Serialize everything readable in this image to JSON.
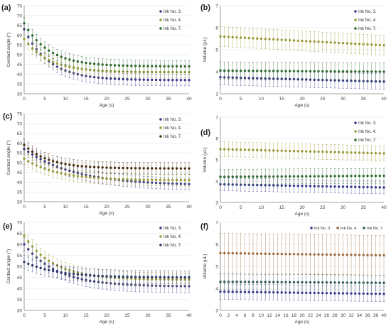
{
  "chart_data": [
    {
      "panel_label": "(a)",
      "type": "scatter",
      "xlabel": "Age (s)",
      "ylabel": "Contact angle (°)",
      "xlim": [
        0,
        40
      ],
      "ylim": [
        30,
        75
      ],
      "xticks": [
        0,
        5,
        10,
        15,
        20,
        25,
        30,
        35,
        40
      ],
      "yticks": [
        30,
        35,
        40,
        45,
        50,
        55,
        60,
        65,
        70,
        75
      ],
      "legend_position": "top-right",
      "series": [
        {
          "name": "Ink No. 3.",
          "color": "#3a3a8c",
          "start": 63,
          "end": 37,
          "tau": 6,
          "err": 3
        },
        {
          "name": "Ink No. 4.",
          "color": "#9b9b3a",
          "start": 58,
          "end": 41,
          "tau": 6,
          "err": 3
        },
        {
          "name": "Ink No. 7.",
          "color": "#2f6b2f",
          "start": 66,
          "end": 44,
          "tau": 6,
          "err": 3
        }
      ]
    },
    {
      "panel_label": "(b)",
      "type": "scatter",
      "xlabel": "Age (s)",
      "ylabel": "Volume (µL)",
      "xlim": [
        0,
        40
      ],
      "ylim": [
        3,
        7
      ],
      "xticks": [
        0,
        5,
        10,
        15,
        20,
        25,
        30,
        35,
        40
      ],
      "yticks": [
        3,
        4,
        5,
        6,
        7
      ],
      "legend_position": "top-right",
      "series": [
        {
          "name": "Ink No. 3.",
          "color": "#3a3a8c",
          "start": 3.75,
          "end": 3.55,
          "tau": 0,
          "err": 0.35
        },
        {
          "name": "Ink No. 4.",
          "color": "#9b9b3a",
          "start": 5.6,
          "end": 5.2,
          "tau": 0,
          "err": 0.45
        },
        {
          "name": "Ink No. 7.",
          "color": "#2f6b2f",
          "start": 4.05,
          "end": 4.0,
          "tau": 0,
          "err": 0.4
        }
      ]
    },
    {
      "panel_label": "(c)",
      "type": "scatter",
      "xlabel": "Age (s)",
      "ylabel": "Contact angle (°)",
      "xlim": [
        0,
        40
      ],
      "ylim": [
        30,
        75
      ],
      "xticks": [
        0,
        5,
        10,
        15,
        20,
        25,
        30,
        35,
        40
      ],
      "yticks": [
        30,
        35,
        40,
        45,
        50,
        55,
        60,
        65,
        70,
        75
      ],
      "legend_position": "top-right",
      "series": [
        {
          "name": "Ink No. 3.",
          "color": "#3a3a8c",
          "start": 57,
          "end": 39,
          "tau": 12,
          "err": 3
        },
        {
          "name": "Ink No. 4.",
          "color": "#9b9b3a",
          "start": 52,
          "end": 41,
          "tau": 8,
          "err": 3
        },
        {
          "name": "Ink No. 7.",
          "color": "#4a2f10",
          "start": 59,
          "end": 47,
          "tau": 6,
          "err": 3
        }
      ]
    },
    {
      "panel_label": "(d)",
      "type": "scatter",
      "xlabel": "Age (s)",
      "ylabel": "Volume (µL)",
      "xlim": [
        0,
        40
      ],
      "ylim": [
        3,
        7
      ],
      "xticks": [
        0,
        5,
        10,
        15,
        20,
        25,
        30,
        35,
        40
      ],
      "yticks": [
        3,
        4,
        5,
        6,
        7
      ],
      "legend_position": "top-right",
      "series": [
        {
          "name": "Ink No. 3.",
          "color": "#3a3a8c",
          "start": 3.85,
          "end": 3.7,
          "tau": 0,
          "err": 0.3
        },
        {
          "name": "Ink No. 4.",
          "color": "#9b9b3a",
          "start": 5.5,
          "end": 5.3,
          "tau": 0,
          "err": 0.35
        },
        {
          "name": "Ink No. 7.",
          "color": "#2f6b2f",
          "start": 4.2,
          "end": 4.25,
          "tau": 0,
          "err": 0.35
        }
      ]
    },
    {
      "panel_label": "(e)",
      "type": "scatter",
      "xlabel": "Age (s)",
      "ylabel": "Contact angle (°)",
      "xlim": [
        0,
        40
      ],
      "ylim": [
        30,
        70
      ],
      "xticks": [
        0,
        5,
        10,
        15,
        20,
        25,
        30,
        35,
        40
      ],
      "yticks": [
        30,
        35,
        40,
        45,
        50,
        55,
        60,
        65,
        70
      ],
      "legend_position": "top-right",
      "series": [
        {
          "name": "Ink No. 3.",
          "color": "#3a3a8c",
          "start": 60,
          "end": 41,
          "tau": 8,
          "err": 3
        },
        {
          "name": "Ink No. 4.",
          "color": "#9b9b3a",
          "start": 64,
          "end": 44,
          "tau": 7,
          "err": 3
        },
        {
          "name": "Ink No. 7.",
          "color": "#2f3b6b",
          "start": 52,
          "end": 45,
          "tau": 8,
          "err": 3
        }
      ]
    },
    {
      "panel_label": "(f)",
      "type": "scatter",
      "xlabel": "Age (s)",
      "ylabel": "Volume (µL)",
      "xlim": [
        0,
        40
      ],
      "ylim": [
        3,
        7
      ],
      "xticks": [
        0,
        2,
        4,
        6,
        8,
        10,
        12,
        14,
        16,
        18,
        20,
        22,
        24,
        26,
        28,
        30,
        32,
        34,
        36,
        38,
        40
      ],
      "yticks": [
        3,
        4,
        5,
        6,
        7
      ],
      "legend_position": "top",
      "series": [
        {
          "name": "Ink No. 3.",
          "color": "#3a3a8c",
          "start": 3.85,
          "end": 3.75,
          "tau": 0,
          "err": 0.35
        },
        {
          "name": "Ink No. 4.",
          "color": "#9b6a3a",
          "start": 5.6,
          "end": 5.5,
          "tau": 0,
          "err": 0.9
        },
        {
          "name": "Ink No. 7.",
          "color": "#2f5b4f",
          "start": 4.3,
          "end": 4.25,
          "tau": 0,
          "err": 0.35
        }
      ]
    }
  ]
}
